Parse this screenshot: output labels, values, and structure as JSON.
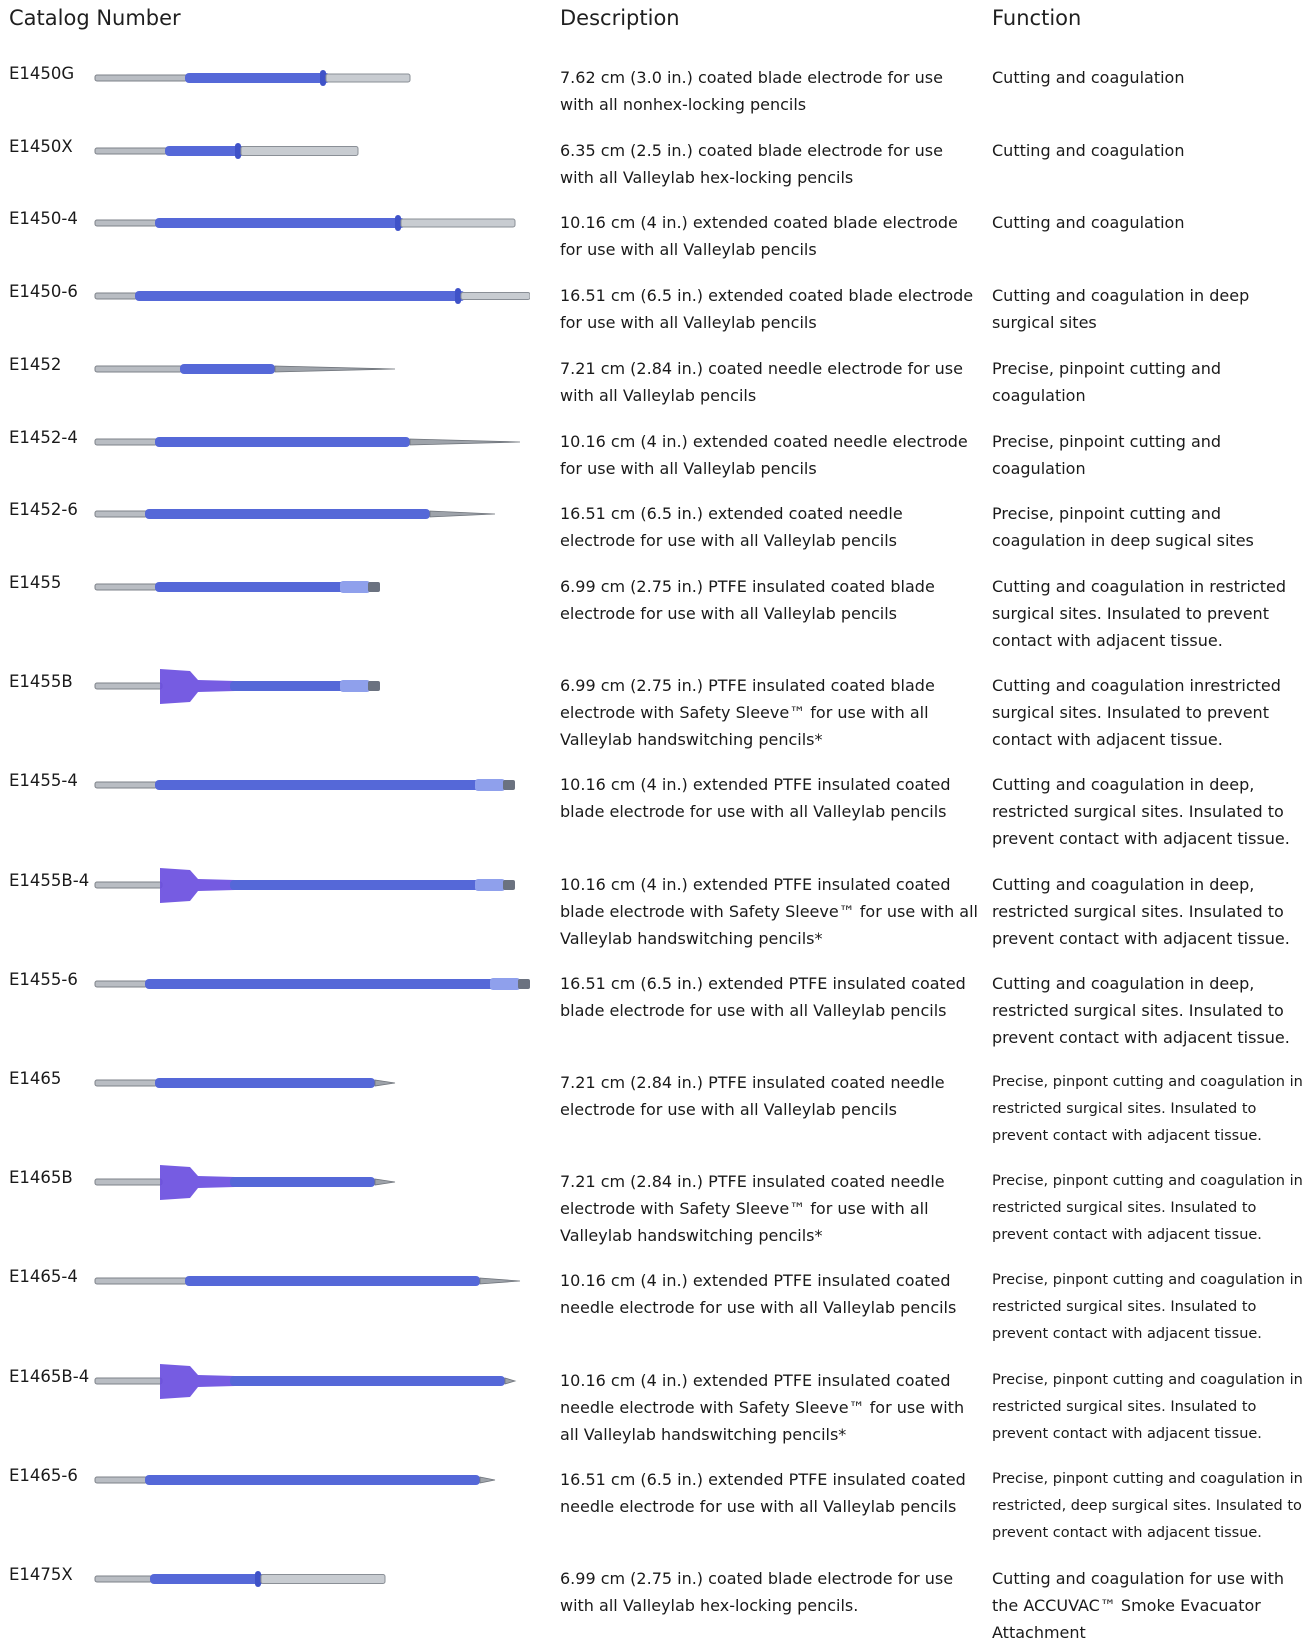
{
  "headers": {
    "catalog": "Catalog Number",
    "description": "Description",
    "function": "Function"
  },
  "colors": {
    "coating": "#5568d8",
    "coating_dark": "#3f52c8",
    "steel": "#b9bdc3",
    "sleeve": "#6a4ee0"
  },
  "rows": [
    {
      "id": "E1450G",
      "desc": "7.62 cm (3.0 in.) coated blade electrode for use with all nonhex-locking pencils",
      "func": "Cutting and coagulation"
    },
    {
      "id": "E1450X",
      "desc": "6.35 cm (2.5 in.) coated blade electrode for use with all Valleylab hex-locking pencils",
      "func": "Cutting and coagulation"
    },
    {
      "id": "E1450-4",
      "desc": "10.16 cm (4 in.) extended coated blade electrode for use with all Valleylab pencils",
      "func": "Cutting and coagulation"
    },
    {
      "id": "E1450-6",
      "desc": "16.51 cm (6.5 in.) extended coated blade electrode for use with all Valleylab pencils",
      "func": "Cutting and coagulation in deep surgical sites"
    },
    {
      "id": "E1452",
      "desc": "7.21 cm (2.84 in.) coated needle electrode for use with all Valleylab pencils",
      "func": "Precise, pinpoint cutting and coagulation"
    },
    {
      "id": "E1452-4",
      "desc": "10.16 cm (4 in.) extended coated needle electrode for use with all Valleylab pencils",
      "func": "Precise, pinpoint cutting and coagulation"
    },
    {
      "id": "E1452-6",
      "desc": "16.51 cm (6.5 in.) extended coated needle electrode for use with all Valleylab pencils",
      "func": "Precise, pinpoint cutting and coagulation in deep sugical sites"
    },
    {
      "id": "E1455",
      "desc": "6.99 cm (2.75 in.) PTFE insulated coated blade electrode for use with all Valleylab pencils",
      "func": "Cutting and coagulation in restricted surgical sites. Insulated to prevent contact with adjacent tissue."
    },
    {
      "id": "E1455B",
      "desc": "6.99 cm (2.75 in.) PTFE  insulated coated blade electrode with Safety Sleeve™ for use with all Valleylab handswitching pencils*",
      "func": "Cutting and coagulation inrestricted surgical sites. Insulated to prevent contact with adjacent tissue."
    },
    {
      "id": "E1455-4",
      "desc": "10.16 cm (4 in.) extended PTFE insulated coated blade electrode for use with all Valleylab pencils",
      "func": "Cutting and coagulation in deep, restricted surgical sites. Insulated to prevent contact with adjacent tissue."
    },
    {
      "id": "E1455B-4",
      "desc": "10.16 cm (4 in.) extended PTFE insulated coated blade electrode with Safety Sleeve™ for use with all Valleylab handswitching pencils*",
      "func": "Cutting and coagulation in deep, restricted surgical sites. Insulated to prevent contact with adjacent tissue."
    },
    {
      "id": "E1455-6",
      "desc": "16.51 cm (6.5 in.) extended PTFE insulated coated blade electrode for use with all Valleylab pencils",
      "func": "Cutting and coagulation in deep, restricted surgical sites. Insulated to prevent contact with adjacent tissue."
    },
    {
      "id": "E1465",
      "desc": "7.21 cm (2.84 in.) PTFE insulated coated needle electrode for use with all Valleylab pencils",
      "func": "Precise, pinpont cutting and coagulation in restricted surgical sites. Insulated to prevent contact with adjacent tissue."
    },
    {
      "id": "E1465B",
      "desc": "7.21 cm (2.84 in.) PTFE insulated coated needle electrode with Safety Sleeve™ for use with all Valleylab handswitching pencils*",
      "func": "Precise, pinpont cutting and coagulation in restricted surgical sites. Insulated to prevent contact with adjacent tissue."
    },
    {
      "id": "E1465-4",
      "desc": "10.16 cm (4 in.) extended PTFE insulated coated needle electrode for use with all Valleylab pencils",
      "func": "Precise, pinpont cutting and coagulation in restricted surgical sites. Insulated to prevent contact with adjacent tissue."
    },
    {
      "id": "E1465B-4",
      "desc": "10.16 cm (4 in.) extended PTFE  insulated coated needle electrode with Safety Sleeve™ for use with all Valleylab handswitching pencils*",
      "func": "Precise, pinpont cutting and coagulation in restricted surgical sites. Insulated to prevent contact with adjacent tissue."
    },
    {
      "id": "E1465-6",
      "desc": "16.51 cm (6.5 in.) extended PTFE insulated coated needle electrode for use with all Valleylab pencils",
      "func": "Precise, pinpont cutting and coagulation in restricted, deep surgical sites. Insulated to prevent contact with adjacent tissue."
    },
    {
      "id": "E1475X",
      "desc": "6.99 cm (2.75 in.) coated blade electrode for use with all Valleylab hex-locking pencils.",
      "func": "Cutting and coagulation for use with the ACCUVAC™ Smoke Evacuator Attachment"
    }
  ]
}
